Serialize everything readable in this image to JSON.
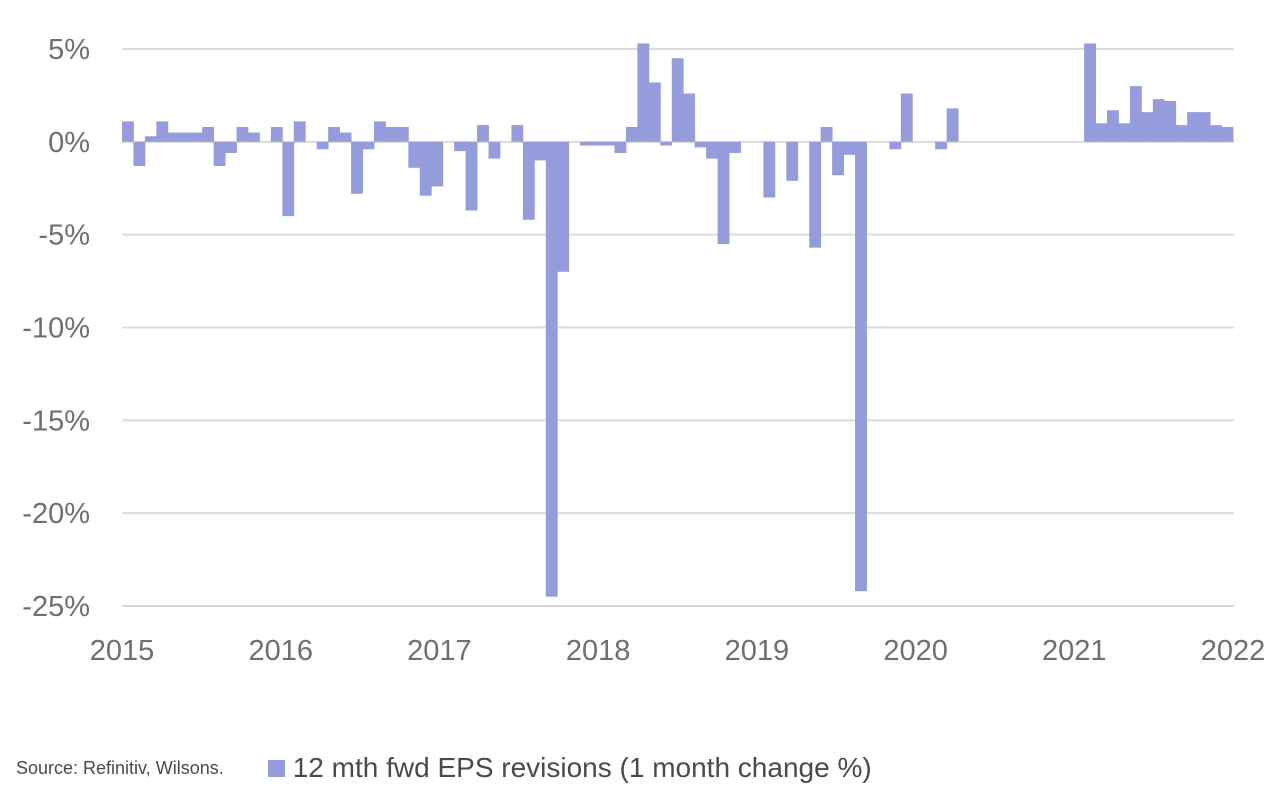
{
  "chart_data": {
    "type": "bar",
    "title": "",
    "xlabel": "",
    "ylabel": "",
    "ylim": [
      -25,
      5
    ],
    "yticks": [
      5,
      0,
      -5,
      -10,
      -15,
      -20,
      -25
    ],
    "ytick_labels": [
      "5%",
      "0%",
      "-5%",
      "-10%",
      "-15%",
      "-20%",
      "-25%"
    ],
    "xlim": [
      2015,
      2022
    ],
    "xtick_labels": [
      "2015",
      "2016",
      "2017",
      "2018",
      "2019",
      "2020",
      "2021",
      "2022"
    ],
    "grid": "horizontal",
    "color": "#949cdb",
    "series": [
      {
        "name": "12 mth fwd EPS revisions (1 month change %)",
        "values": [
          1.1,
          -1.3,
          0.3,
          1.1,
          0.5,
          0.5,
          0.5,
          0.8,
          -1.3,
          -0.6,
          0.8,
          0.5,
          null,
          0.8,
          -4.0,
          1.1,
          null,
          -0.4,
          0.8,
          0.5,
          -2.8,
          -0.4,
          1.1,
          0.8,
          0.8,
          -1.4,
          -2.9,
          -2.4,
          null,
          -0.5,
          -3.7,
          0.9,
          -0.9,
          null,
          0.9,
          -4.2,
          -1.0,
          -24.5,
          -7.0,
          null,
          -0.2,
          -0.2,
          -0.2,
          -0.6,
          0.8,
          5.3,
          3.2,
          -0.2,
          4.5,
          2.6,
          -0.3,
          -0.9,
          -5.5,
          -0.6,
          null,
          null,
          -3.0,
          null,
          -2.1,
          null,
          -5.7,
          0.8,
          -1.8,
          -0.7,
          -24.2,
          null,
          null,
          -0.4,
          2.6,
          null,
          null,
          -0.4,
          1.8,
          null,
          null,
          null,
          null,
          null,
          null,
          null,
          null,
          null,
          null,
          null,
          5.3,
          1.0,
          1.7,
          1.0,
          3.0,
          1.6,
          2.3,
          2.2,
          0.9,
          1.6,
          1.6,
          0.9,
          0.8
        ]
      }
    ],
    "x_start": 2015,
    "period_step": 0.0833
  },
  "footer": {
    "source": "Source: Refinitiv, Wilsons.",
    "legend_label": "12 mth fwd EPS revisions (1 month change %)"
  }
}
